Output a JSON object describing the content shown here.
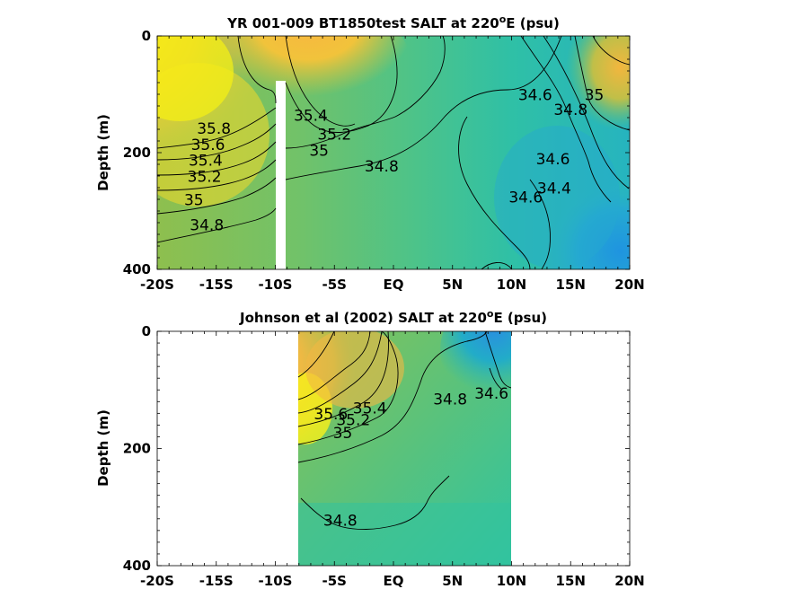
{
  "chart_data": [
    {
      "type": "heatmap",
      "title_prefix": "YR 001-009 BT1850test SALT at 220",
      "title_superscript": "o",
      "title_suffix": "E (psu)",
      "ylabel": "Depth (m)",
      "xlim": [
        -20,
        20
      ],
      "ylim": [
        0,
        400
      ],
      "y_reversed": true,
      "x_ticks": [
        -20,
        -15,
        -10,
        -5,
        0,
        5,
        10,
        15,
        20
      ],
      "x_tick_labels": [
        "-20S",
        "-15S",
        "-10S",
        "-5S",
        "EQ",
        "5N",
        "10N",
        "15N",
        "20N"
      ],
      "y_ticks": [
        0,
        200,
        400
      ],
      "y_tick_labels": [
        "0",
        "200",
        "400"
      ],
      "colormap": "parula",
      "contour_levels": [
        34.4,
        34.6,
        34.8,
        35.0,
        35.2,
        35.4,
        35.6,
        35.8
      ],
      "data_mask_x": [
        -10,
        -9.2
      ],
      "data_mask_top_depth": 75,
      "contour_labels": [
        {
          "text": "35.8",
          "x": -15.2,
          "y": 168
        },
        {
          "text": "35.6",
          "x": -15.7,
          "y": 195
        },
        {
          "text": "35.4",
          "x": -15.9,
          "y": 222
        },
        {
          "text": "35.2",
          "x": -16.0,
          "y": 250
        },
        {
          "text": "35",
          "x": -16.9,
          "y": 290
        },
        {
          "text": "34.8",
          "x": -15.8,
          "y": 333
        },
        {
          "text": "35.4",
          "x": -7.0,
          "y": 145
        },
        {
          "text": "35.2",
          "x": -5.0,
          "y": 178
        },
        {
          "text": "35",
          "x": -6.3,
          "y": 205
        },
        {
          "text": "34.8",
          "x": -1.0,
          "y": 232
        },
        {
          "text": "34.6",
          "x": 12.0,
          "y": 110
        },
        {
          "text": "34.8",
          "x": 15.0,
          "y": 135
        },
        {
          "text": "35",
          "x": 17.0,
          "y": 110
        },
        {
          "text": "34.6",
          "x": 13.5,
          "y": 220
        },
        {
          "text": "34.4",
          "x": 13.6,
          "y": 270
        },
        {
          "text": "34.6",
          "x": 11.2,
          "y": 285
        }
      ]
    },
    {
      "type": "heatmap",
      "title_prefix": "Johnson et al (2002) SALT at 220",
      "title_superscript": "o",
      "title_suffix": "E (psu)",
      "ylabel": "Depth (m)",
      "xlim": [
        -20,
        20
      ],
      "ylim": [
        0,
        400
      ],
      "y_reversed": true,
      "x_ticks": [
        -20,
        -15,
        -10,
        -5,
        0,
        5,
        10,
        15,
        20
      ],
      "x_tick_labels": [
        "-20S",
        "-15S",
        "-10S",
        "-5S",
        "EQ",
        "5N",
        "10N",
        "15N",
        "20N"
      ],
      "y_ticks": [
        0,
        200,
        400
      ],
      "y_tick_labels": [
        "0",
        "200",
        "400"
      ],
      "colormap": "parula",
      "contour_levels": [
        34.6,
        34.8,
        35.0,
        35.2,
        35.4,
        35.6
      ],
      "data_x_range": [
        -8,
        10
      ],
      "contour_labels": [
        {
          "text": "35.4",
          "x": -2.0,
          "y": 140
        },
        {
          "text": "35.2",
          "x": -3.4,
          "y": 160
        },
        {
          "text": "35",
          "x": -4.3,
          "y": 182
        },
        {
          "text": "35.6",
          "x": -5.3,
          "y": 150
        },
        {
          "text": "34.8",
          "x": 4.8,
          "y": 125
        },
        {
          "text": "34.6",
          "x": 8.3,
          "y": 115
        },
        {
          "text": "34.8",
          "x": -4.5,
          "y": 332
        }
      ]
    }
  ]
}
